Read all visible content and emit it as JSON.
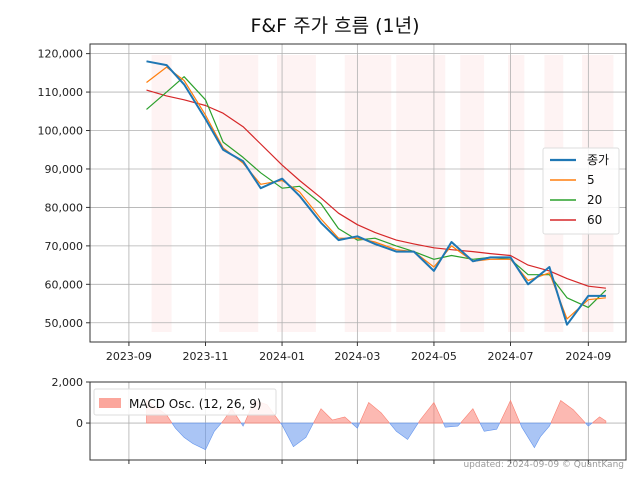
{
  "chart_data": [
    {
      "type": "line",
      "title": "F&F 주가 흐름 (1년)",
      "x_ticks": [
        "2023-09",
        "2023-11",
        "2024-01",
        "2024-03",
        "2024-05",
        "2024-07",
        "2024-09"
      ],
      "y_ticks": [
        "50,000",
        "60,000",
        "70,000",
        "80,000",
        "90,000",
        "100,000",
        "110,000",
        "120,000"
      ],
      "ylim": [
        45000,
        122500
      ],
      "grid": true,
      "legend_position": "right",
      "x": [
        "2023-09-15",
        "2023-10-01",
        "2023-10-15",
        "2023-11-01",
        "2023-11-15",
        "2023-12-01",
        "2023-12-15",
        "2024-01-01",
        "2024-01-15",
        "2024-02-01",
        "2024-02-15",
        "2024-03-01",
        "2024-03-15",
        "2024-04-01",
        "2024-04-15",
        "2024-05-01",
        "2024-05-15",
        "2024-06-01",
        "2024-06-15",
        "2024-07-01",
        "2024-07-15",
        "2024-08-01",
        "2024-08-15",
        "2024-09-01",
        "2024-09-15"
      ],
      "series": [
        {
          "name": "종가",
          "color": "#1f77b4",
          "width": 2.0,
          "values": [
            118000,
            117000,
            112000,
            103000,
            95000,
            92000,
            85000,
            87500,
            83000,
            76000,
            71500,
            72500,
            70500,
            68500,
            68500,
            63500,
            71000,
            66000,
            67000,
            67000,
            60000,
            64500,
            49500,
            57000,
            57000
          ]
        },
        {
          "name": "5",
          "color": "#ff7f0e",
          "width": 1.2,
          "values": [
            112500,
            116500,
            113000,
            104000,
            95500,
            91500,
            86000,
            87000,
            84000,
            77000,
            72000,
            72000,
            71000,
            69000,
            68500,
            64500,
            70000,
            66000,
            66500,
            66500,
            61000,
            63000,
            51000,
            56000,
            56500
          ]
        },
        {
          "name": "20",
          "color": "#2ca02c",
          "width": 1.2,
          "values": [
            105500,
            110000,
            114000,
            108000,
            97000,
            93000,
            89000,
            85000,
            85500,
            81000,
            74500,
            71500,
            72000,
            70000,
            68500,
            66500,
            67500,
            66500,
            67000,
            66500,
            62500,
            62500,
            56500,
            54000,
            58500
          ]
        },
        {
          "name": "60",
          "color": "#d62728",
          "width": 1.2,
          "values": [
            110500,
            109000,
            108000,
            106500,
            104500,
            101000,
            96500,
            91000,
            87000,
            82500,
            78500,
            75500,
            73500,
            71500,
            70500,
            69500,
            69000,
            68500,
            68000,
            67500,
            65000,
            63500,
            61500,
            59500,
            59000
          ]
        }
      ]
    },
    {
      "type": "area",
      "legend": "MACD Osc. (12, 26, 9)",
      "y_ticks": [
        "2,000",
        "0"
      ],
      "ylim": [
        -1800,
        2000
      ],
      "positive_color": "#fa8072",
      "negative_color": "#6495ed",
      "x": [
        "2023-09-15",
        "2023-10-01",
        "2023-10-08",
        "2023-10-15",
        "2023-10-22",
        "2023-11-01",
        "2023-11-08",
        "2023-11-15",
        "2023-11-22",
        "2023-12-01",
        "2023-12-10",
        "2023-12-20",
        "2024-01-01",
        "2024-01-10",
        "2024-01-20",
        "2024-02-01",
        "2024-02-10",
        "2024-02-20",
        "2024-03-01",
        "2024-03-10",
        "2024-03-20",
        "2024-04-01",
        "2024-04-10",
        "2024-04-20",
        "2024-05-01",
        "2024-05-10",
        "2024-05-20",
        "2024-06-01",
        "2024-06-10",
        "2024-06-20",
        "2024-07-01",
        "2024-07-10",
        "2024-07-20",
        "2024-07-25",
        "2024-08-01",
        "2024-08-10",
        "2024-08-20",
        "2024-09-01",
        "2024-09-10",
        "2024-09-15"
      ],
      "values": [
        1100,
        400,
        -250,
        -700,
        -1000,
        -1300,
        -400,
        100,
        700,
        -150,
        1100,
        900,
        -100,
        -1150,
        -700,
        700,
        150,
        300,
        -250,
        1000,
        500,
        -400,
        -800,
        150,
        1000,
        -200,
        -150,
        700,
        -400,
        -300,
        1100,
        -200,
        -1200,
        -650,
        -150,
        1100,
        650,
        -150,
        300,
        100
      ]
    }
  ],
  "footer": {
    "credit": "updated: 2024-09-09 © QuantKang"
  }
}
